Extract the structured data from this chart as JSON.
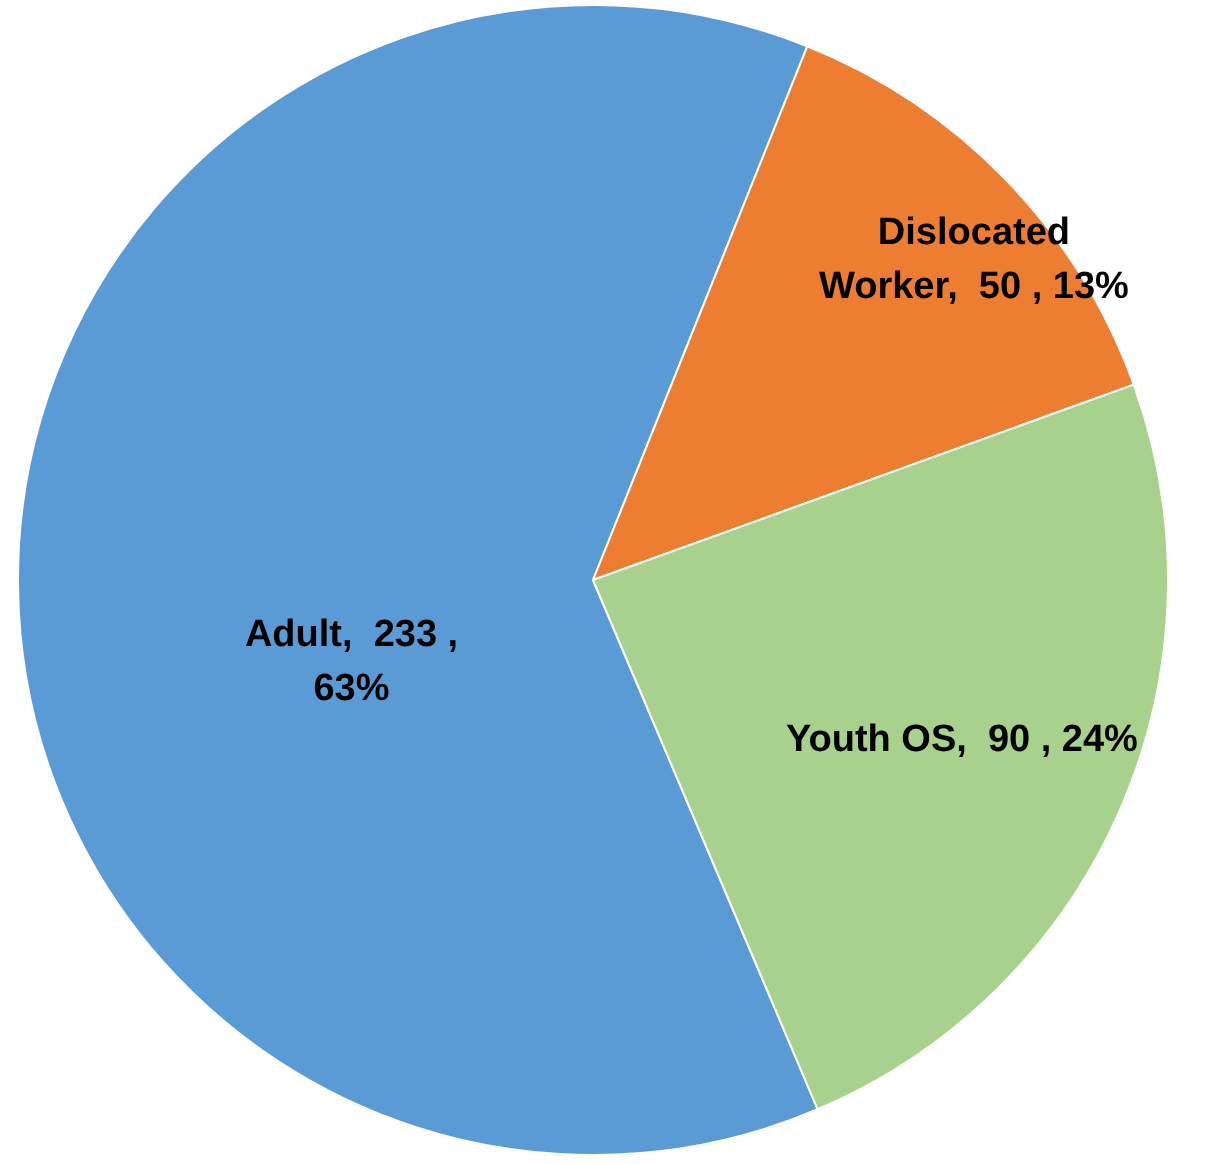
{
  "chart_data": {
    "type": "pie",
    "categories": [
      "Adult",
      "Dislocated Worker",
      "Youth OS"
    ],
    "values": [
      233,
      50,
      90
    ],
    "colors": [
      "#5b9bd5",
      "#ed7d31",
      "#a9d18e"
    ],
    "value_labels": [
      "233 , 63%",
      "50 , 13%",
      "90 , 24%"
    ],
    "legend": false
  }
}
